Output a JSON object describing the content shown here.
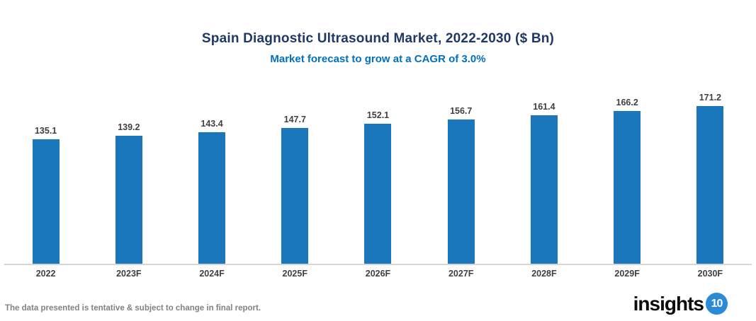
{
  "header": {
    "title": "Spain Diagnostic Ultrasound Market, 2022-2030 ($ Bn)",
    "subtitle": "Market forecast to grow at a CAGR of 3.0%",
    "title_color": "#1f3864",
    "subtitle_color": "#0070c0"
  },
  "chart_data": {
    "type": "bar",
    "title": "Spain Diagnostic Ultrasound Market, 2022-2030 ($ Bn)",
    "subtitle": "Market forecast to grow at a CAGR of 3.0%",
    "categories": [
      "2022",
      "2023F",
      "2024F",
      "2025F",
      "2026F",
      "2027F",
      "2028F",
      "2029F",
      "2030F"
    ],
    "values": [
      135.1,
      139.2,
      143.4,
      147.7,
      152.1,
      156.7,
      161.4,
      166.2,
      171.2
    ],
    "xlabel": "",
    "ylabel": "",
    "ylim": [
      0,
      200
    ],
    "grid": false,
    "legend": false,
    "bar_color": "#1b77bc",
    "value_label_color": "#404040"
  },
  "footer": {
    "note": "The data presented is tentative & subject to change in final report."
  },
  "logo": {
    "text": "insights",
    "badge": "10",
    "badge_color": "#2b8ad6"
  }
}
